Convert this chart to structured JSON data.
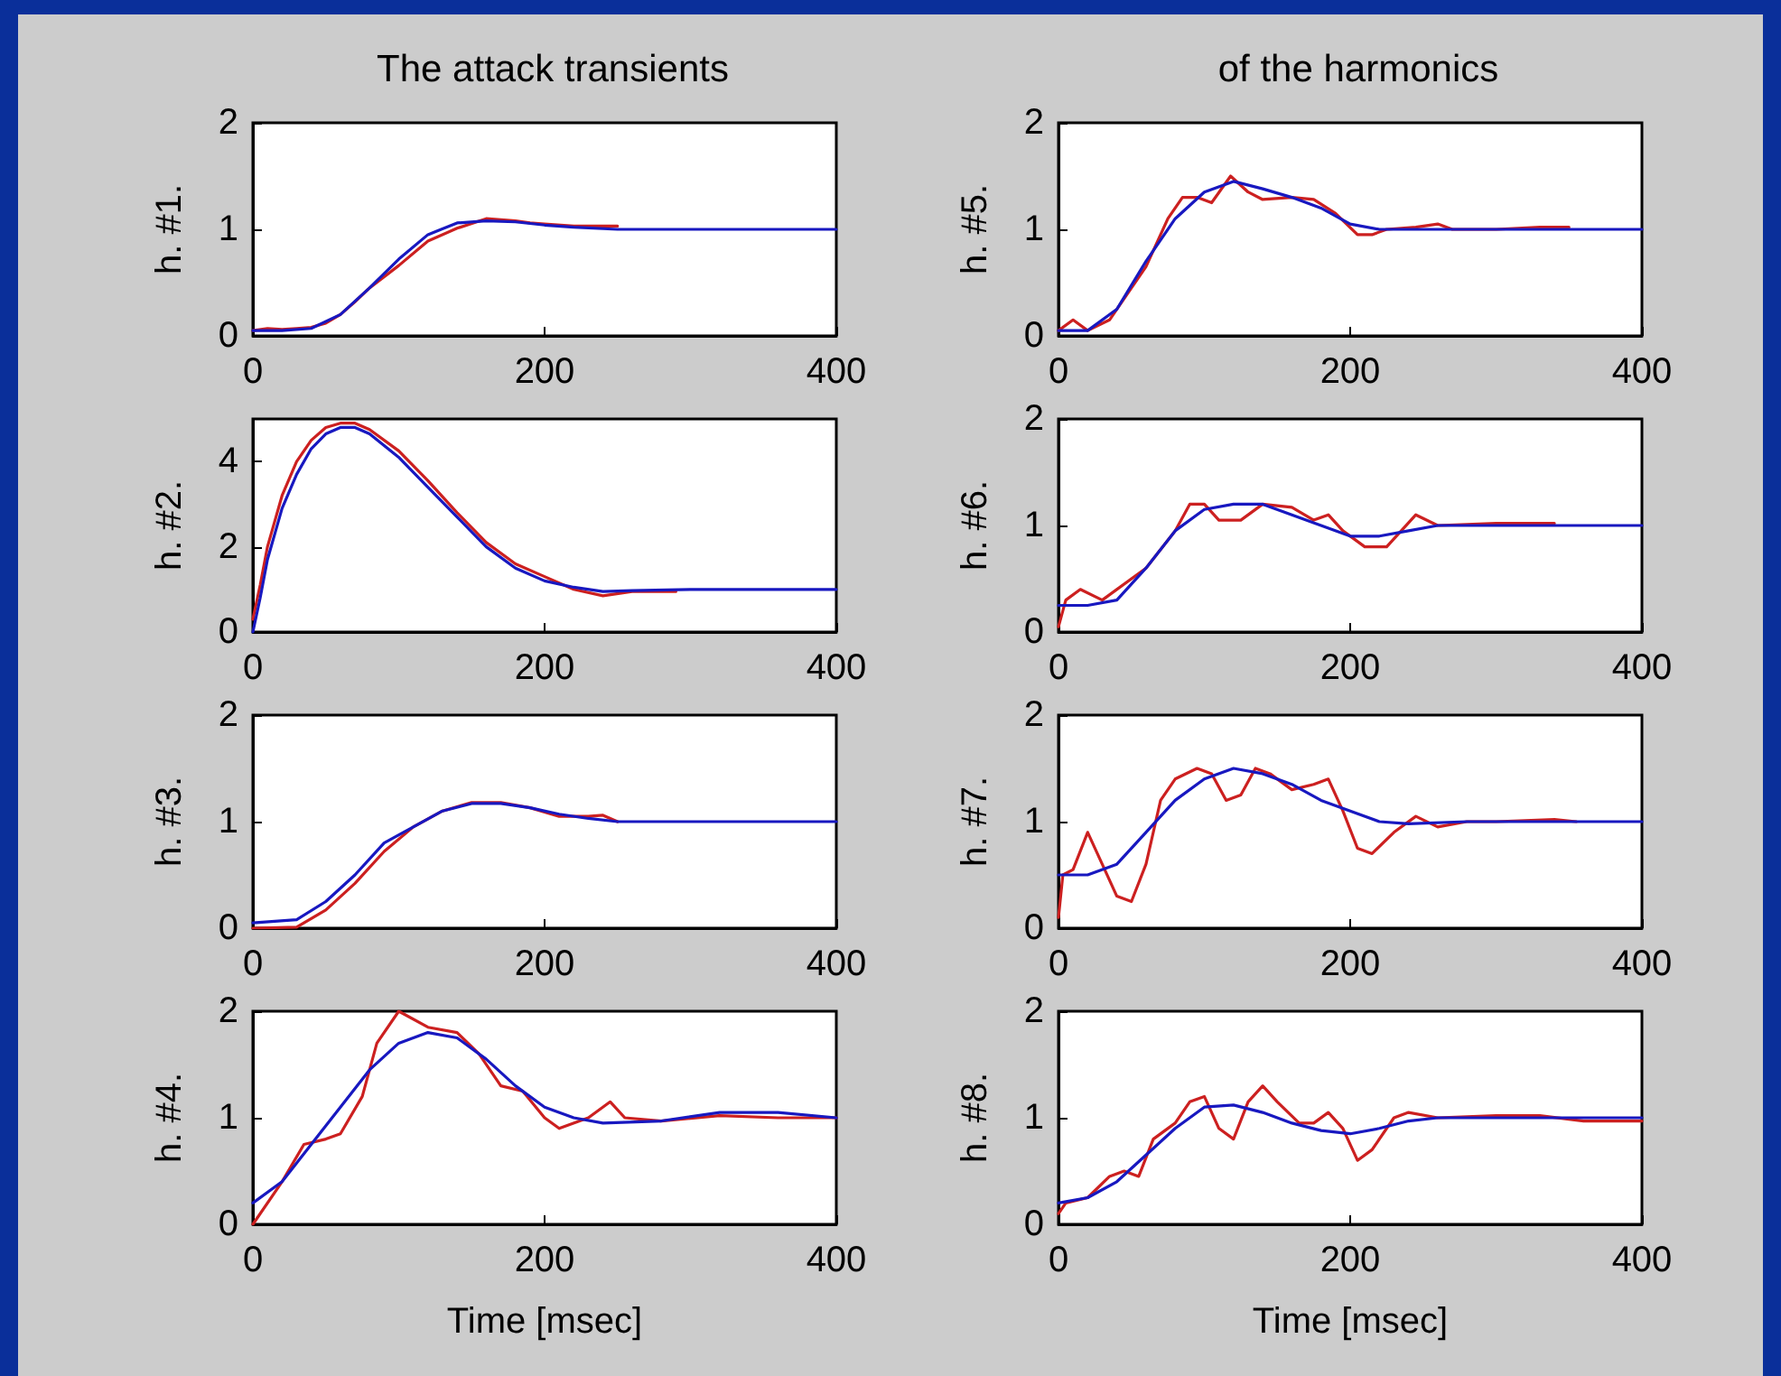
{
  "chart_data": [
    {
      "type": "line",
      "title": "The attack transients",
      "ylabel": "h. #1.",
      "xlim": [
        0,
        400
      ],
      "xticks": [
        0,
        200,
        400
      ],
      "ylim": [
        0,
        2
      ],
      "yticks": [
        0,
        1,
        2
      ],
      "series": [
        {
          "color": "#cc2020",
          "x": [
            0,
            10,
            20,
            30,
            40,
            50,
            60,
            70,
            80,
            100,
            120,
            140,
            160,
            180,
            190,
            200,
            220,
            250
          ],
          "values": [
            0.05,
            0.07,
            0.06,
            0.07,
            0.08,
            0.12,
            0.2,
            0.32,
            0.45,
            0.66,
            0.89,
            1.01,
            1.1,
            1.08,
            1.06,
            1.05,
            1.03,
            1.03
          ]
        },
        {
          "color": "#1818c0",
          "x": [
            0,
            20,
            40,
            60,
            80,
            100,
            120,
            140,
            160,
            180,
            200,
            220,
            250,
            400
          ],
          "values": [
            0.05,
            0.05,
            0.07,
            0.2,
            0.45,
            0.72,
            0.95,
            1.06,
            1.08,
            1.07,
            1.04,
            1.02,
            1.0,
            1.0
          ]
        }
      ]
    },
    {
      "type": "line",
      "title": "of the harmonics",
      "ylabel": "h. #5.",
      "xlim": [
        0,
        400
      ],
      "xticks": [
        0,
        200,
        400
      ],
      "ylim": [
        0,
        2
      ],
      "yticks": [
        0,
        1,
        2
      ],
      "series": [
        {
          "color": "#cc2020",
          "x": [
            0,
            10,
            20,
            35,
            60,
            75,
            85,
            95,
            105,
            118,
            130,
            140,
            160,
            175,
            190,
            205,
            215,
            225,
            245,
            260,
            270,
            300,
            330,
            350
          ],
          "values": [
            0.05,
            0.15,
            0.05,
            0.15,
            0.65,
            1.1,
            1.3,
            1.3,
            1.25,
            1.5,
            1.35,
            1.28,
            1.3,
            1.28,
            1.15,
            0.95,
            0.95,
            1.0,
            1.02,
            1.05,
            1.0,
            1.0,
            1.02,
            1.02
          ]
        },
        {
          "color": "#1818c0",
          "x": [
            0,
            20,
            40,
            60,
            80,
            100,
            120,
            140,
            160,
            180,
            200,
            220,
            400
          ],
          "values": [
            0.05,
            0.05,
            0.25,
            0.7,
            1.1,
            1.35,
            1.45,
            1.38,
            1.3,
            1.2,
            1.05,
            1.0,
            1.0
          ]
        }
      ]
    },
    {
      "type": "line",
      "ylabel": "h. #2.",
      "xlim": [
        0,
        400
      ],
      "xticks": [
        0,
        200,
        400
      ],
      "ylim": [
        0,
        5
      ],
      "yticks": [
        0,
        2,
        4
      ],
      "series": [
        {
          "color": "#cc2020",
          "x": [
            0,
            5,
            10,
            20,
            30,
            40,
            50,
            60,
            70,
            80,
            100,
            120,
            140,
            160,
            180,
            200,
            220,
            240,
            260,
            290
          ],
          "values": [
            0.3,
            1.1,
            2.0,
            3.2,
            4.0,
            4.5,
            4.8,
            4.9,
            4.9,
            4.75,
            4.25,
            3.55,
            2.8,
            2.1,
            1.6,
            1.3,
            1.0,
            0.85,
            0.95,
            0.95
          ]
        },
        {
          "color": "#1818c0",
          "x": [
            0,
            5,
            10,
            20,
            30,
            40,
            50,
            60,
            70,
            80,
            100,
            120,
            140,
            160,
            180,
            200,
            220,
            240,
            260,
            300,
            400
          ],
          "values": [
            0,
            0.8,
            1.7,
            2.9,
            3.7,
            4.3,
            4.65,
            4.8,
            4.8,
            4.65,
            4.1,
            3.4,
            2.7,
            2.0,
            1.5,
            1.2,
            1.05,
            0.95,
            0.97,
            1.0,
            1.0
          ]
        }
      ]
    },
    {
      "type": "line",
      "ylabel": "h. #6.",
      "xlim": [
        0,
        400
      ],
      "xticks": [
        0,
        200,
        400
      ],
      "ylim": [
        0,
        2
      ],
      "yticks": [
        0,
        1,
        2
      ],
      "series": [
        {
          "color": "#cc2020",
          "x": [
            0,
            5,
            15,
            30,
            60,
            80,
            90,
            100,
            110,
            125,
            140,
            160,
            175,
            185,
            195,
            210,
            225,
            235,
            245,
            260,
            300,
            340
          ],
          "values": [
            0.05,
            0.3,
            0.4,
            0.3,
            0.6,
            0.95,
            1.2,
            1.2,
            1.05,
            1.05,
            1.2,
            1.17,
            1.05,
            1.1,
            0.95,
            0.8,
            0.8,
            0.95,
            1.1,
            1.0,
            1.02,
            1.02
          ]
        },
        {
          "color": "#1818c0",
          "x": [
            0,
            20,
            40,
            60,
            80,
            100,
            120,
            140,
            160,
            180,
            200,
            220,
            240,
            260,
            400
          ],
          "values": [
            0.25,
            0.25,
            0.3,
            0.6,
            0.95,
            1.15,
            1.2,
            1.2,
            1.1,
            1.0,
            0.9,
            0.9,
            0.95,
            1.0,
            1.0
          ]
        }
      ]
    },
    {
      "type": "line",
      "ylabel": "h. #3.",
      "xlim": [
        0,
        400
      ],
      "xticks": [
        0,
        200,
        400
      ],
      "ylim": [
        0,
        2
      ],
      "yticks": [
        0,
        1,
        2
      ],
      "series": [
        {
          "color": "#cc2020",
          "x": [
            0,
            30,
            50,
            70,
            90,
            110,
            130,
            150,
            170,
            190,
            210,
            230,
            240,
            250
          ],
          "values": [
            0.0,
            0.01,
            0.17,
            0.42,
            0.72,
            0.95,
            1.1,
            1.18,
            1.18,
            1.13,
            1.05,
            1.05,
            1.06,
            1.0
          ]
        },
        {
          "color": "#1818c0",
          "x": [
            0,
            30,
            50,
            70,
            90,
            110,
            130,
            150,
            170,
            190,
            210,
            230,
            250,
            400
          ],
          "values": [
            0.05,
            0.08,
            0.25,
            0.5,
            0.8,
            0.95,
            1.1,
            1.17,
            1.17,
            1.13,
            1.07,
            1.03,
            1.0,
            1.0
          ]
        }
      ]
    },
    {
      "type": "line",
      "ylabel": "h. #7.",
      "xlim": [
        0,
        400
      ],
      "xticks": [
        0,
        200,
        400
      ],
      "ylim": [
        0,
        2
      ],
      "yticks": [
        0,
        1,
        2
      ],
      "series": [
        {
          "color": "#cc2020",
          "x": [
            0,
            3,
            10,
            20,
            30,
            40,
            50,
            60,
            70,
            80,
            95,
            105,
            115,
            125,
            135,
            145,
            160,
            175,
            185,
            195,
            205,
            215,
            230,
            245,
            260,
            280,
            300,
            340,
            355
          ],
          "values": [
            0.1,
            0.5,
            0.55,
            0.9,
            0.6,
            0.3,
            0.25,
            0.6,
            1.2,
            1.4,
            1.5,
            1.45,
            1.2,
            1.25,
            1.5,
            1.45,
            1.3,
            1.35,
            1.4,
            1.1,
            0.75,
            0.7,
            0.9,
            1.05,
            0.95,
            1.0,
            1.0,
            1.02,
            1.0
          ]
        },
        {
          "color": "#1818c0",
          "x": [
            0,
            20,
            40,
            60,
            80,
            100,
            120,
            140,
            160,
            180,
            200,
            220,
            240,
            280,
            400
          ],
          "values": [
            0.5,
            0.5,
            0.6,
            0.9,
            1.2,
            1.4,
            1.5,
            1.45,
            1.35,
            1.2,
            1.1,
            1.0,
            0.98,
            1.0,
            1.0
          ]
        }
      ]
    },
    {
      "type": "line",
      "ylabel": "h. #4.",
      "xlabel": "Time [msec]",
      "xlim": [
        0,
        400
      ],
      "xticks": [
        0,
        200,
        400
      ],
      "ylim": [
        0,
        2
      ],
      "yticks": [
        0,
        1,
        2
      ],
      "series": [
        {
          "color": "#cc2020",
          "x": [
            0,
            20,
            35,
            50,
            60,
            75,
            85,
            100,
            120,
            140,
            155,
            170,
            185,
            200,
            210,
            230,
            245,
            255,
            280,
            320,
            360,
            400
          ],
          "values": [
            0,
            0.4,
            0.75,
            0.8,
            0.85,
            1.2,
            1.7,
            2.0,
            1.85,
            1.8,
            1.6,
            1.3,
            1.25,
            1.0,
            0.9,
            1.0,
            1.15,
            1.0,
            0.97,
            1.02,
            1.0,
            1.0
          ]
        },
        {
          "color": "#1818c0",
          "x": [
            0,
            20,
            40,
            60,
            80,
            100,
            120,
            140,
            160,
            180,
            200,
            220,
            240,
            280,
            320,
            360,
            400
          ],
          "values": [
            0.2,
            0.4,
            0.75,
            1.1,
            1.45,
            1.7,
            1.8,
            1.75,
            1.55,
            1.3,
            1.1,
            1.0,
            0.95,
            0.97,
            1.05,
            1.05,
            1.0
          ]
        }
      ]
    },
    {
      "type": "line",
      "ylabel": "h. #8.",
      "xlabel": "Time [msec]",
      "xlim": [
        0,
        400
      ],
      "xticks": [
        0,
        200,
        400
      ],
      "ylim": [
        0,
        2
      ],
      "yticks": [
        0,
        1,
        2
      ],
      "series": [
        {
          "color": "#cc2020",
          "x": [
            0,
            5,
            20,
            35,
            45,
            55,
            65,
            80,
            90,
            100,
            110,
            120,
            130,
            140,
            150,
            165,
            175,
            185,
            195,
            205,
            215,
            230,
            240,
            260,
            300,
            330,
            360,
            400
          ],
          "values": [
            0.1,
            0.2,
            0.25,
            0.45,
            0.5,
            0.45,
            0.8,
            0.95,
            1.15,
            1.2,
            0.9,
            0.8,
            1.15,
            1.3,
            1.15,
            0.95,
            0.95,
            1.05,
            0.9,
            0.6,
            0.7,
            1.0,
            1.05,
            1.0,
            1.02,
            1.02,
            0.97,
            0.97
          ]
        },
        {
          "color": "#1818c0",
          "x": [
            0,
            20,
            40,
            60,
            80,
            100,
            120,
            140,
            160,
            180,
            200,
            220,
            240,
            260,
            400
          ],
          "values": [
            0.2,
            0.25,
            0.4,
            0.65,
            0.9,
            1.1,
            1.12,
            1.05,
            0.95,
            0.88,
            0.85,
            0.9,
            0.97,
            1.0,
            1.0
          ]
        }
      ]
    }
  ]
}
